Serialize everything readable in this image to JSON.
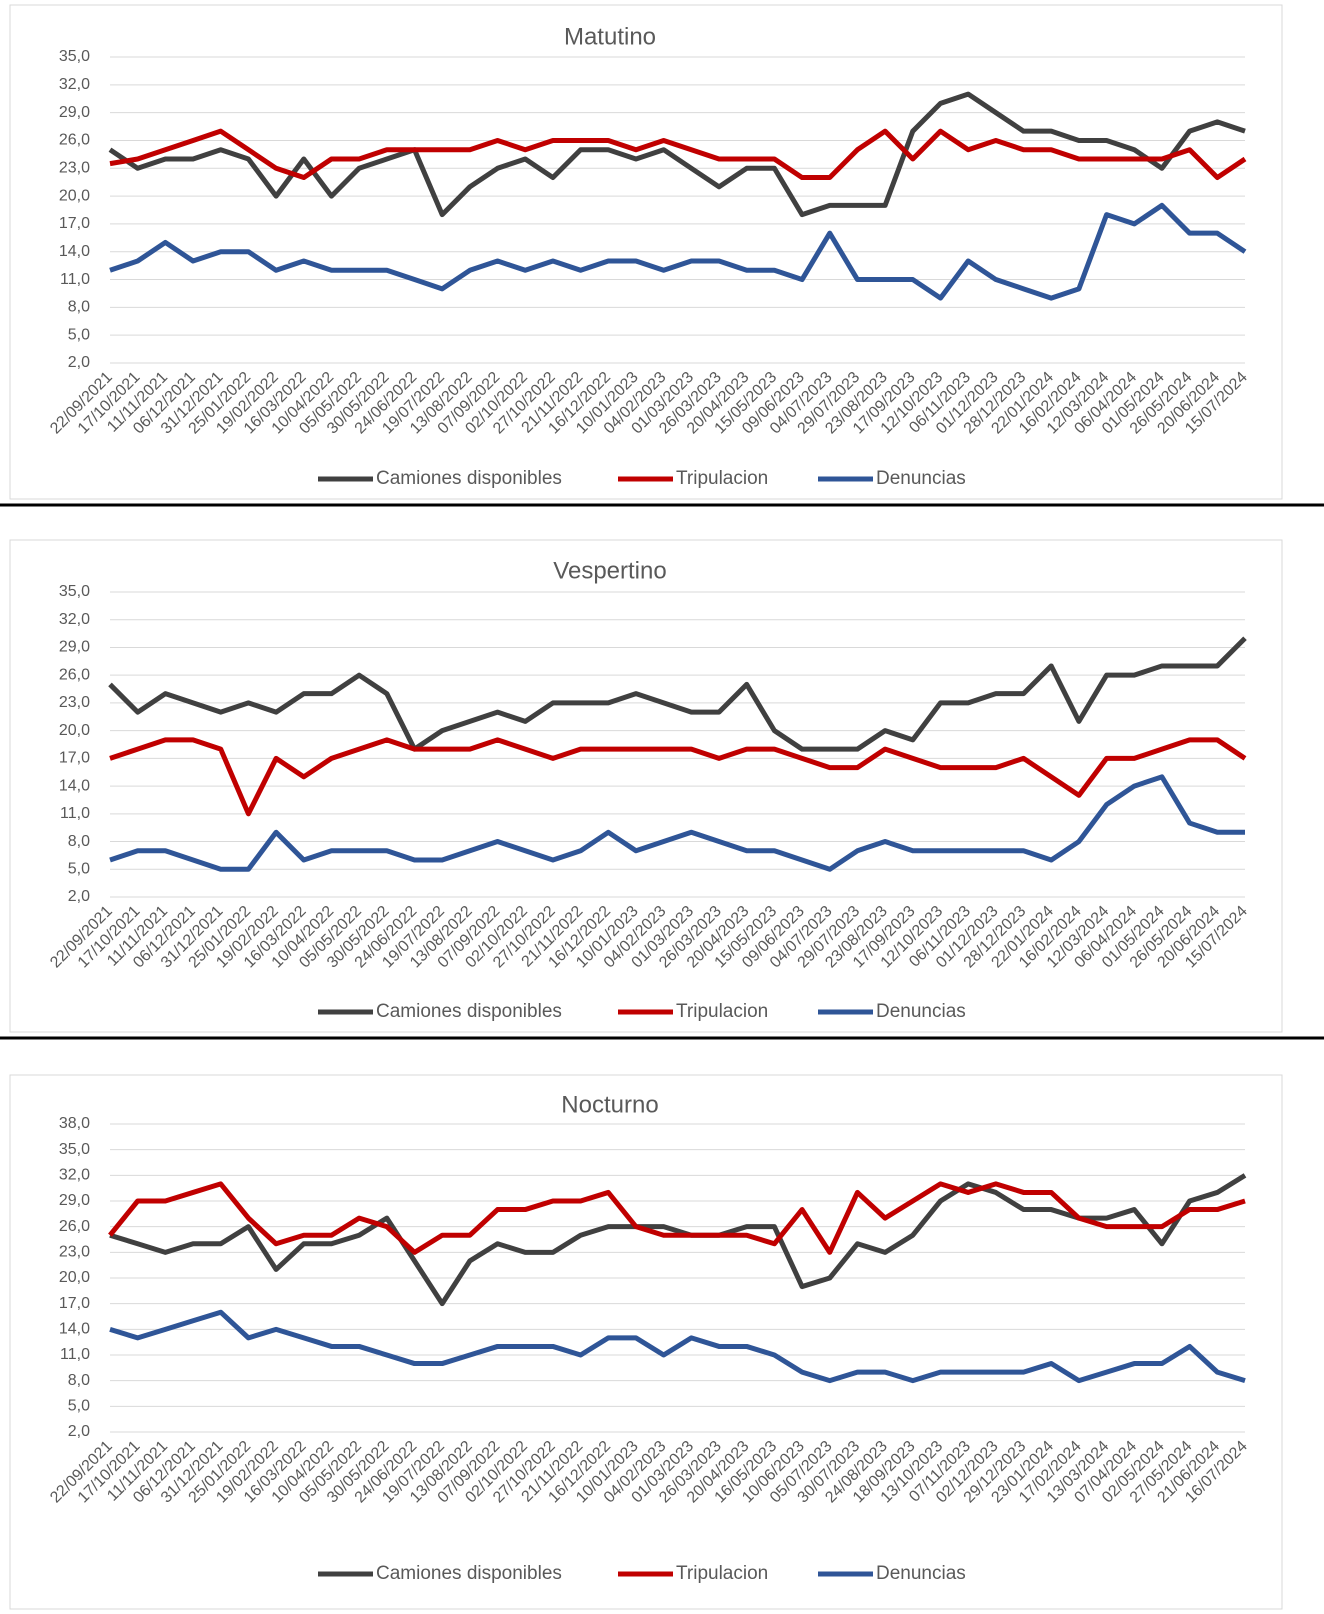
{
  "chart_data": [
    {
      "type": "line",
      "title": "Matutino",
      "categories": [
        "22/09/2021",
        "17/10/2021",
        "11/11/2021",
        "06/12/2021",
        "31/12/2021",
        "25/01/2022",
        "19/02/2022",
        "16/03/2022",
        "10/04/2022",
        "05/05/2022",
        "30/05/2022",
        "24/06/2022",
        "19/07/2022",
        "13/08/2022",
        "07/09/2022",
        "02/10/2022",
        "27/10/2022",
        "21/11/2022",
        "16/12/2022",
        "10/01/2023",
        "04/02/2023",
        "01/03/2023",
        "26/03/2023",
        "20/04/2023",
        "15/05/2023",
        "09/06/2023",
        "04/07/2023",
        "29/07/2023",
        "23/08/2023",
        "17/09/2023",
        "12/10/2023",
        "06/11/2023",
        "01/12/2023",
        "28/12/2023",
        "22/01/2024",
        "16/02/2024",
        "12/03/2024",
        "06/04/2024",
        "01/05/2024",
        "26/05/2024",
        "20/06/2024",
        "15/07/2024"
      ],
      "series": [
        {
          "name": "Camiones disponibles",
          "color": "#404040",
          "values": [
            25,
            23,
            24,
            24,
            25,
            24,
            20,
            24,
            20,
            23,
            24,
            25,
            18,
            21,
            23,
            24,
            22,
            25,
            25,
            24,
            25,
            23,
            21,
            23,
            23,
            18,
            19,
            19,
            19,
            27,
            30,
            31,
            29,
            27,
            27,
            26,
            26,
            25,
            23,
            27,
            28,
            27
          ]
        },
        {
          "name": "Tripulacion",
          "color": "#c00000",
          "values": [
            23.5,
            24,
            25,
            26,
            27,
            25,
            23,
            22,
            24,
            24,
            25,
            25,
            25,
            25,
            26,
            25,
            26,
            26,
            26,
            25,
            26,
            25,
            24,
            24,
            24,
            22,
            22,
            25,
            27,
            24,
            27,
            25,
            26,
            25,
            25,
            24,
            24,
            24,
            24,
            25,
            22,
            24
          ]
        },
        {
          "name": "Denuncias",
          "color": "#2f5597",
          "values": [
            12,
            13,
            15,
            13,
            14,
            14,
            12,
            13,
            12,
            12,
            12,
            11,
            10,
            12,
            13,
            12,
            13,
            12,
            13,
            13,
            12,
            13,
            13,
            12,
            12,
            11,
            16,
            11,
            11,
            11,
            9,
            13,
            11,
            10,
            9,
            10,
            18,
            17,
            19,
            16,
            16,
            14
          ]
        }
      ],
      "ylim": [
        2,
        35
      ],
      "yticks": [
        {
          "value": 2,
          "label": "2,0"
        },
        {
          "value": 5,
          "label": "5,0"
        },
        {
          "value": 8,
          "label": "8,0"
        },
        {
          "value": 11,
          "label": "11,0"
        },
        {
          "value": 14,
          "label": "14,0"
        },
        {
          "value": 17,
          "label": "17,0"
        },
        {
          "value": 20,
          "label": "20,0"
        },
        {
          "value": 23,
          "label": "23,0"
        },
        {
          "value": 26,
          "label": "26,0"
        },
        {
          "value": 29,
          "label": "29,0"
        },
        {
          "value": 32,
          "label": "32,0"
        },
        {
          "value": 35,
          "label": "35,0"
        }
      ],
      "grid": true,
      "legend": "bottom"
    },
    {
      "type": "line",
      "title": "Vespertino",
      "categories": [
        "22/09/2021",
        "17/10/2021",
        "11/11/2021",
        "06/12/2021",
        "31/12/2021",
        "25/01/2022",
        "19/02/2022",
        "16/03/2022",
        "10/04/2022",
        "05/05/2022",
        "30/05/2022",
        "24/06/2022",
        "19/07/2022",
        "13/08/2022",
        "07/09/2022",
        "02/10/2022",
        "27/10/2022",
        "21/11/2022",
        "16/12/2022",
        "10/01/2023",
        "04/02/2023",
        "01/03/2023",
        "26/03/2023",
        "20/04/2023",
        "15/05/2023",
        "09/06/2023",
        "04/07/2023",
        "29/07/2023",
        "23/08/2023",
        "17/09/2023",
        "12/10/2023",
        "06/11/2023",
        "01/12/2023",
        "28/12/2023",
        "22/01/2024",
        "16/02/2024",
        "12/03/2024",
        "06/04/2024",
        "01/05/2024",
        "26/05/2024",
        "20/06/2024",
        "15/07/2024"
      ],
      "series": [
        {
          "name": "Camiones disponibles",
          "color": "#404040",
          "values": [
            25,
            22,
            24,
            23,
            22,
            23,
            22,
            24,
            24,
            26,
            24,
            18,
            20,
            21,
            22,
            21,
            23,
            23,
            23,
            24,
            23,
            22,
            22,
            25,
            20,
            18,
            18,
            18,
            20,
            19,
            23,
            23,
            24,
            24,
            27,
            21,
            26,
            26,
            27,
            27,
            27,
            30
          ]
        },
        {
          "name": "Tripulacion",
          "color": "#c00000",
          "values": [
            17,
            18,
            19,
            19,
            18,
            11,
            17,
            15,
            17,
            18,
            19,
            18,
            18,
            18,
            19,
            18,
            17,
            18,
            18,
            18,
            18,
            18,
            17,
            18,
            18,
            17,
            16,
            16,
            18,
            17,
            16,
            16,
            16,
            17,
            15,
            13,
            17,
            17,
            18,
            19,
            19,
            17
          ]
        },
        {
          "name": "Denuncias",
          "color": "#2f5597",
          "values": [
            6,
            7,
            7,
            6,
            5,
            5,
            9,
            6,
            7,
            7,
            7,
            6,
            6,
            7,
            8,
            7,
            6,
            7,
            9,
            7,
            8,
            9,
            8,
            7,
            7,
            6,
            5,
            7,
            8,
            7,
            7,
            7,
            7,
            7,
            6,
            8,
            12,
            14,
            15,
            10,
            9,
            9
          ]
        }
      ],
      "ylim": [
        2,
        35
      ],
      "yticks": [
        {
          "value": 2,
          "label": "2,0"
        },
        {
          "value": 5,
          "label": "5,0"
        },
        {
          "value": 8,
          "label": "8,0"
        },
        {
          "value": 11,
          "label": "11,0"
        },
        {
          "value": 14,
          "label": "14,0"
        },
        {
          "value": 17,
          "label": "17,0"
        },
        {
          "value": 20,
          "label": "20,0"
        },
        {
          "value": 23,
          "label": "23,0"
        },
        {
          "value": 26,
          "label": "26,0"
        },
        {
          "value": 29,
          "label": "29,0"
        },
        {
          "value": 32,
          "label": "32,0"
        },
        {
          "value": 35,
          "label": "35,0"
        }
      ],
      "grid": true,
      "legend": "bottom"
    },
    {
      "type": "line",
      "title": "Nocturno",
      "categories": [
        "22/09/2021",
        "17/10/2021",
        "11/11/2021",
        "06/12/2021",
        "31/12/2021",
        "25/01/2022",
        "19/02/2022",
        "16/03/2022",
        "10/04/2022",
        "05/05/2022",
        "30/05/2022",
        "24/06/2022",
        "19/07/2022",
        "13/08/2022",
        "07/09/2022",
        "02/10/2022",
        "27/10/2022",
        "21/11/2022",
        "16/12/2022",
        "10/01/2023",
        "04/02/2023",
        "01/03/2023",
        "26/03/2023",
        "20/04/2023",
        "16/05/2023",
        "10/06/2023",
        "05/07/2023",
        "30/07/2023",
        "24/08/2023",
        "18/09/2023",
        "13/10/2023",
        "07/11/2023",
        "02/12/2023",
        "29/12/2023",
        "23/01/2024",
        "17/02/2024",
        "13/03/2024",
        "07/04/2024",
        "02/05/2024",
        "27/05/2024",
        "21/06/2024",
        "16/07/2024"
      ],
      "series": [
        {
          "name": "Camiones disponibles",
          "color": "#404040",
          "values": [
            25,
            24,
            23,
            24,
            24,
            26,
            21,
            24,
            24,
            25,
            27,
            22,
            17,
            22,
            24,
            23,
            23,
            25,
            26,
            26,
            26,
            25,
            25,
            26,
            26,
            19,
            20,
            24,
            23,
            25,
            29,
            31,
            30,
            28,
            28,
            27,
            27,
            28,
            24,
            29,
            30,
            32
          ]
        },
        {
          "name": "Tripulacion",
          "color": "#c00000",
          "values": [
            25,
            29,
            29,
            30,
            31,
            27,
            24,
            25,
            25,
            27,
            26,
            23,
            25,
            25,
            28,
            28,
            29,
            29,
            30,
            26,
            25,
            25,
            25,
            25,
            24,
            28,
            23,
            30,
            27,
            29,
            31,
            30,
            31,
            30,
            30,
            27,
            26,
            26,
            26,
            28,
            28,
            29
          ]
        },
        {
          "name": "Denuncias",
          "color": "#2f5597",
          "values": [
            14,
            13,
            14,
            15,
            16,
            13,
            14,
            13,
            12,
            12,
            11,
            10,
            10,
            11,
            12,
            12,
            12,
            11,
            13,
            13,
            11,
            13,
            12,
            12,
            11,
            9,
            8,
            9,
            9,
            8,
            9,
            9,
            9,
            9,
            10,
            8,
            9,
            10,
            10,
            12,
            9,
            8
          ]
        }
      ],
      "ylim": [
        2,
        38
      ],
      "yticks": [
        {
          "value": 2,
          "label": "2,0"
        },
        {
          "value": 5,
          "label": "5,0"
        },
        {
          "value": 8,
          "label": "8,0"
        },
        {
          "value": 11,
          "label": "11,0"
        },
        {
          "value": 14,
          "label": "14,0"
        },
        {
          "value": 17,
          "label": "17,0"
        },
        {
          "value": 20,
          "label": "20,0"
        },
        {
          "value": 23,
          "label": "23,0"
        },
        {
          "value": 26,
          "label": "26,0"
        },
        {
          "value": 29,
          "label": "29,0"
        },
        {
          "value": 32,
          "label": "32,0"
        },
        {
          "value": 35,
          "label": "35,0"
        },
        {
          "value": 38,
          "label": "38,0"
        }
      ],
      "grid": true,
      "legend": "bottom"
    }
  ]
}
